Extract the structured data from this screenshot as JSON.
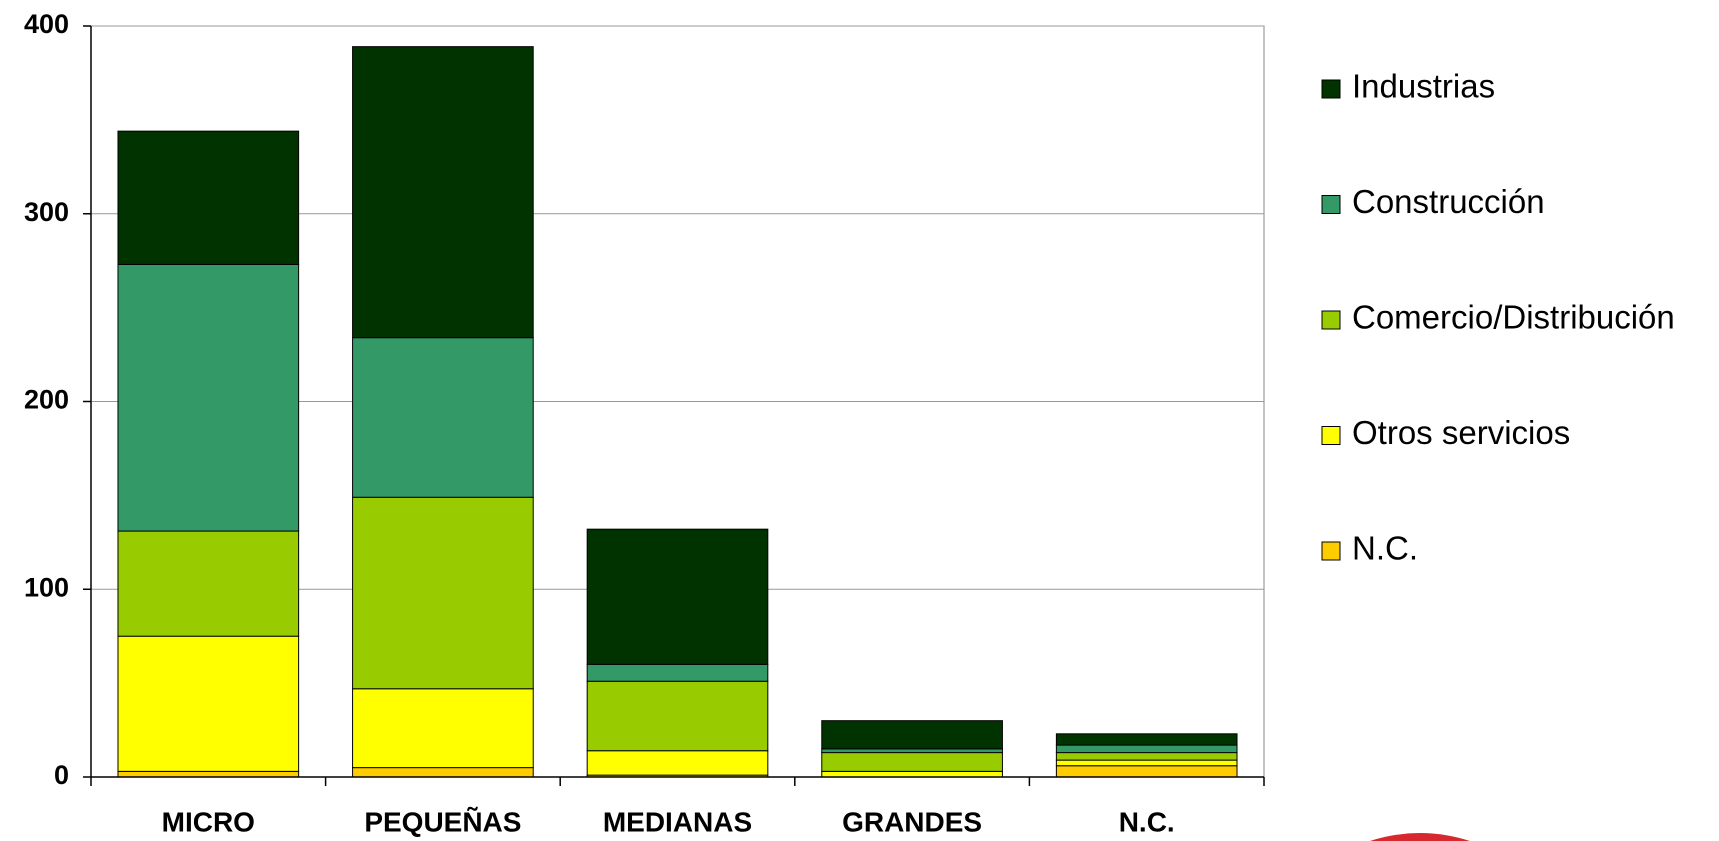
{
  "chart_data": {
    "type": "bar",
    "stacked": true,
    "categories": [
      "MICRO",
      "PEQUEÑAS",
      "MEDIANAS",
      "GRANDES",
      "N.C."
    ],
    "series": [
      {
        "name": "N.C.",
        "color": "#ffcc00",
        "values": [
          3,
          5,
          1,
          0,
          6
        ]
      },
      {
        "name": "Otros servicios",
        "color": "#ffff00",
        "values": [
          72,
          42,
          13,
          3,
          3
        ]
      },
      {
        "name": "Comercio/Distribución",
        "color": "#99cc00",
        "values": [
          56,
          102,
          37,
          10,
          4
        ]
      },
      {
        "name": "Construcción",
        "color": "#339966",
        "values": [
          142,
          85,
          9,
          2,
          4
        ]
      },
      {
        "name": "Industrias",
        "color": "#003300",
        "values": [
          71,
          155,
          72,
          15,
          6
        ]
      }
    ],
    "ylim": [
      0,
      400
    ],
    "yticks": [
      0,
      100,
      200,
      300,
      400
    ],
    "grid": true
  }
}
